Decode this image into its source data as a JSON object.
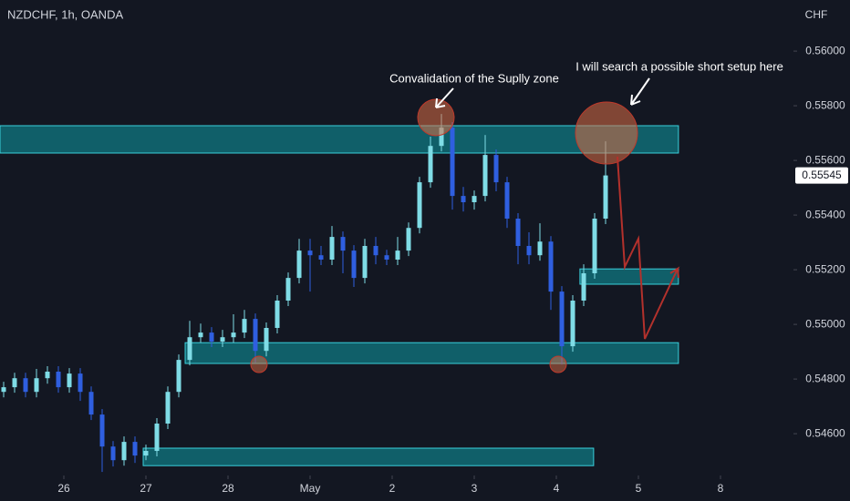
{
  "chart_data": {
    "type": "candlestick",
    "title": "NZDCHF, 1h, OANDA",
    "y_axis_label": "CHF",
    "x": [
      -17.6,
      -14.4,
      -11.2,
      -8,
      -4.8,
      -1.6,
      1.6,
      4.8,
      8,
      11.2,
      14.4,
      17.6,
      20.8,
      24,
      27.2,
      30.4,
      33.6,
      36.8,
      40,
      43.2,
      46.4,
      49.6,
      52.8,
      56,
      59.2,
      62.4,
      65.6,
      68.8,
      72,
      75.2,
      78.4,
      81.6,
      84.8,
      88,
      91.2,
      94.4,
      97.6,
      100.8,
      104,
      107.2,
      110.4,
      113.6,
      116.8,
      120,
      123.2,
      126.4,
      129.6,
      132.8,
      136,
      139.2,
      142.4,
      145.6,
      148.8,
      152,
      155.2,
      158.4
    ],
    "open": [
      0.54753,
      0.5477,
      0.54803,
      0.54753,
      0.54803,
      0.54827,
      0.5477,
      0.5482,
      0.54753,
      0.5467,
      0.54553,
      0.54503,
      0.5457,
      0.5452,
      0.54537,
      0.54637,
      0.54753,
      0.5487,
      0.54953,
      0.5497,
      0.54937,
      0.54953,
      0.5497,
      0.5502,
      0.54903,
      0.54987,
      0.55087,
      0.5517,
      0.5527,
      0.55253,
      0.55237,
      0.5532,
      0.5527,
      0.5517,
      0.55287,
      0.55253,
      0.55237,
      0.5527,
      0.55353,
      0.5552,
      0.55653,
      0.5572,
      0.5547,
      0.55447,
      0.5547,
      0.5562,
      0.5552,
      0.55387,
      0.55287,
      0.55253,
      0.55303,
      0.5512,
      0.5492,
      0.55087,
      0.55187,
      0.55387
    ],
    "high": [
      0.5479,
      0.54823,
      0.54823,
      0.54837,
      0.54847,
      0.54847,
      0.5484,
      0.5484,
      0.54773,
      0.5469,
      0.54573,
      0.5459,
      0.5459,
      0.5456,
      0.54657,
      0.54773,
      0.5489,
      0.55013,
      0.55003,
      0.5499,
      0.5498,
      0.55037,
      0.55053,
      0.5504,
      0.55007,
      0.55107,
      0.5519,
      0.55313,
      0.55313,
      0.55287,
      0.5536,
      0.5534,
      0.5529,
      0.55313,
      0.5532,
      0.55273,
      0.5532,
      0.55373,
      0.5554,
      0.55687,
      0.5577,
      0.5574,
      0.55503,
      0.5549,
      0.55693,
      0.5564,
      0.5554,
      0.55407,
      0.55337,
      0.5537,
      0.55323,
      0.5514,
      0.55107,
      0.5522,
      0.55407,
      0.5567
    ],
    "low": [
      0.54733,
      0.5475,
      0.54733,
      0.54733,
      0.54783,
      0.5475,
      0.5475,
      0.5472,
      0.5465,
      0.5446,
      0.5448,
      0.54483,
      0.54493,
      0.54503,
      0.54517,
      0.54617,
      0.54733,
      0.5485,
      0.54933,
      0.54917,
      0.54917,
      0.54933,
      0.5495,
      0.5486,
      0.54883,
      0.54967,
      0.55067,
      0.5515,
      0.5512,
      0.55217,
      0.55217,
      0.55187,
      0.55137,
      0.5515,
      0.5522,
      0.55217,
      0.55217,
      0.5525,
      0.55333,
      0.555,
      0.55633,
      0.5542,
      0.55413,
      0.5542,
      0.5545,
      0.55487,
      0.55353,
      0.5522,
      0.5522,
      0.55233,
      0.55053,
      0.54853,
      0.549,
      0.55067,
      0.55167,
      0.55367
    ],
    "close": [
      0.5477,
      0.54803,
      0.54753,
      0.54803,
      0.54827,
      0.5477,
      0.5482,
      0.54753,
      0.5467,
      0.54553,
      0.54503,
      0.5457,
      0.5452,
      0.54537,
      0.54637,
      0.54753,
      0.5487,
      0.54953,
      0.5497,
      0.54937,
      0.54953,
      0.5497,
      0.5502,
      0.54903,
      0.54987,
      0.55087,
      0.5517,
      0.5527,
      0.55253,
      0.55237,
      0.5532,
      0.5527,
      0.5517,
      0.55287,
      0.55253,
      0.55237,
      0.5527,
      0.55353,
      0.5552,
      0.55653,
      0.5572,
      0.5547,
      0.55447,
      0.5547,
      0.5562,
      0.5552,
      0.55387,
      0.55287,
      0.55253,
      0.55303,
      0.5512,
      0.5492,
      0.55087,
      0.55187,
      0.55387,
      0.55545
    ],
    "up_color": "#7fdce6",
    "down_color": "#2f5fe0",
    "last_price": 0.55545,
    "xlim": [
      -18.67,
      213.33
    ],
    "xticks": [
      {
        "value": 0,
        "label": "26"
      },
      {
        "value": 24,
        "label": "27"
      },
      {
        "value": 48,
        "label": "28"
      },
      {
        "value": 72,
        "label": "May"
      },
      {
        "value": 96,
        "label": "2"
      },
      {
        "value": 120,
        "label": "3"
      },
      {
        "value": 144,
        "label": "4"
      },
      {
        "value": 168,
        "label": "5"
      },
      {
        "value": 192,
        "label": "8"
      }
    ],
    "ylim": [
      0.54447,
      0.56187
    ],
    "yticks": [
      {
        "value": 0.546,
        "label": "0.54600"
      },
      {
        "value": 0.548,
        "label": "0.54800"
      },
      {
        "value": 0.55,
        "label": "0.55000"
      },
      {
        "value": 0.552,
        "label": "0.55200"
      },
      {
        "value": 0.554,
        "label": "0.55400"
      },
      {
        "value": 0.556,
        "label": "0.55600"
      },
      {
        "value": 0.558,
        "label": "0.55800"
      },
      {
        "value": 0.56,
        "label": "0.56000"
      }
    ],
    "zone_color": "#0f8f99",
    "zones": [
      {
        "top": 0.55727,
        "bottom": 0.55627,
        "start": -18.67,
        "end": 179.7
      },
      {
        "top": 0.55203,
        "bottom": 0.55147,
        "start": 150.9,
        "end": 179.7
      },
      {
        "top": 0.54933,
        "bottom": 0.54857,
        "start": 35.47,
        "end": 179.7
      },
      {
        "top": 0.54547,
        "bottom": 0.54483,
        "start": 23.2,
        "end": 154.9
      }
    ],
    "annotations": [
      "Convalidation of the Suplly zone",
      "I will search a possible short setup here"
    ]
  }
}
